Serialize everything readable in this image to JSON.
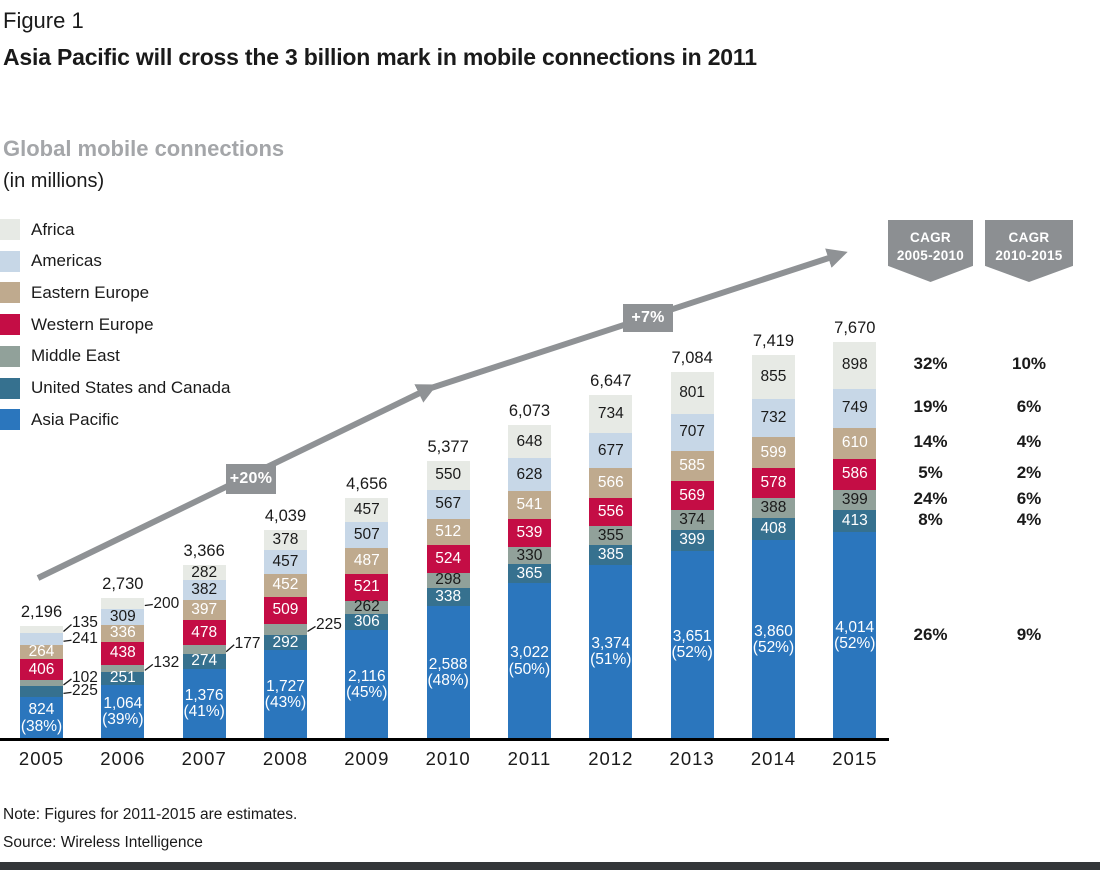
{
  "figure": {
    "label": "Figure 1",
    "title": "Asia Pacific will cross the 3 billion mark in mobile connections in 2011"
  },
  "footer": {
    "note": "Note: Figures for 2011-2015 are estimates.",
    "source": "Source: Wireless Intelligence"
  },
  "chart_data": {
    "type": "bar",
    "stacked": true,
    "title": "Global mobile connections",
    "unit": "(in millions)",
    "legend_position": "top-left",
    "categories": [
      "2005",
      "2006",
      "2007",
      "2008",
      "2009",
      "2010",
      "2011",
      "2012",
      "2013",
      "2014",
      "2015"
    ],
    "totals": [
      2196,
      2730,
      3366,
      4039,
      4656,
      5377,
      6073,
      6647,
      7084,
      7419,
      7670
    ],
    "series": [
      {
        "name": "Africa",
        "color": "#e7eae5",
        "label_color": "#1a1a1a",
        "values": [
          135,
          200,
          282,
          378,
          457,
          550,
          648,
          734,
          801,
          855,
          898
        ],
        "cagr_2005_2010": "32%",
        "cagr_2010_2015": "10%"
      },
      {
        "name": "Americas",
        "color": "#c7d7e7",
        "label_color": "#1a1a1a",
        "values": [
          241,
          309,
          382,
          457,
          507,
          567,
          628,
          677,
          707,
          732,
          749
        ],
        "cagr_2005_2010": "19%",
        "cagr_2010_2015": "6%"
      },
      {
        "name": "Eastern Europe",
        "color": "#bfaa8e",
        "label_color": "#ffffff",
        "values": [
          264,
          336,
          397,
          452,
          487,
          512,
          541,
          566,
          585,
          599,
          610
        ],
        "cagr_2005_2010": "14%",
        "cagr_2010_2015": "4%"
      },
      {
        "name": "Western Europe",
        "color": "#c40d45",
        "label_color": "#ffffff",
        "values": [
          406,
          438,
          478,
          509,
          521,
          524,
          539,
          556,
          569,
          578,
          586
        ],
        "cagr_2005_2010": "5%",
        "cagr_2010_2015": "2%"
      },
      {
        "name": "Middle East",
        "color": "#91a19a",
        "label_color": "#1a1a1a",
        "values": [
          102,
          132,
          177,
          225,
          262,
          298,
          330,
          355,
          374,
          388,
          399
        ],
        "cagr_2005_2010": "24%",
        "cagr_2010_2015": "6%"
      },
      {
        "name": "United States and Canada",
        "color": "#36718f",
        "label_color": "#ffffff",
        "values": [
          225,
          251,
          274,
          292,
          306,
          338,
          365,
          385,
          399,
          408,
          413
        ],
        "cagr_2005_2010": "8%",
        "cagr_2010_2015": "4%"
      },
      {
        "name": "Asia Pacific",
        "color": "#2b76bd",
        "label_color": "#ffffff",
        "values": [
          824,
          1064,
          1376,
          1727,
          2116,
          2588,
          3022,
          3374,
          3651,
          3860,
          4014
        ],
        "share_labels": [
          "(38%)",
          "(39%)",
          "(41%)",
          "(43%)",
          "(45%)",
          "(48%)",
          "(50%)",
          "(51%)",
          "(52%)",
          "(52%)",
          "(52%)"
        ],
        "cagr_2005_2010": "26%",
        "cagr_2010_2015": "9%"
      }
    ],
    "callouts": [
      {
        "year": "2005",
        "series": "Africa"
      },
      {
        "year": "2005",
        "series": "Americas"
      },
      {
        "year": "2005",
        "series": "Middle East"
      },
      {
        "year": "2005",
        "series": "United States and Canada"
      },
      {
        "year": "2006",
        "series": "Africa"
      },
      {
        "year": "2006",
        "series": "Middle East"
      },
      {
        "year": "2007",
        "series": "Middle East"
      },
      {
        "year": "2008",
        "series": "Middle East"
      }
    ],
    "growth_annotations": [
      {
        "label": "+20%"
      },
      {
        "label": "+7%"
      }
    ],
    "cagr_headers": [
      {
        "line1": "CAGR",
        "line2": "2005-2010"
      },
      {
        "line1": "CAGR",
        "line2": "2010-2015"
      }
    ],
    "colors": {
      "arrow": "#8f9295",
      "badge": "#8c8f92",
      "axis": "#000000"
    }
  }
}
